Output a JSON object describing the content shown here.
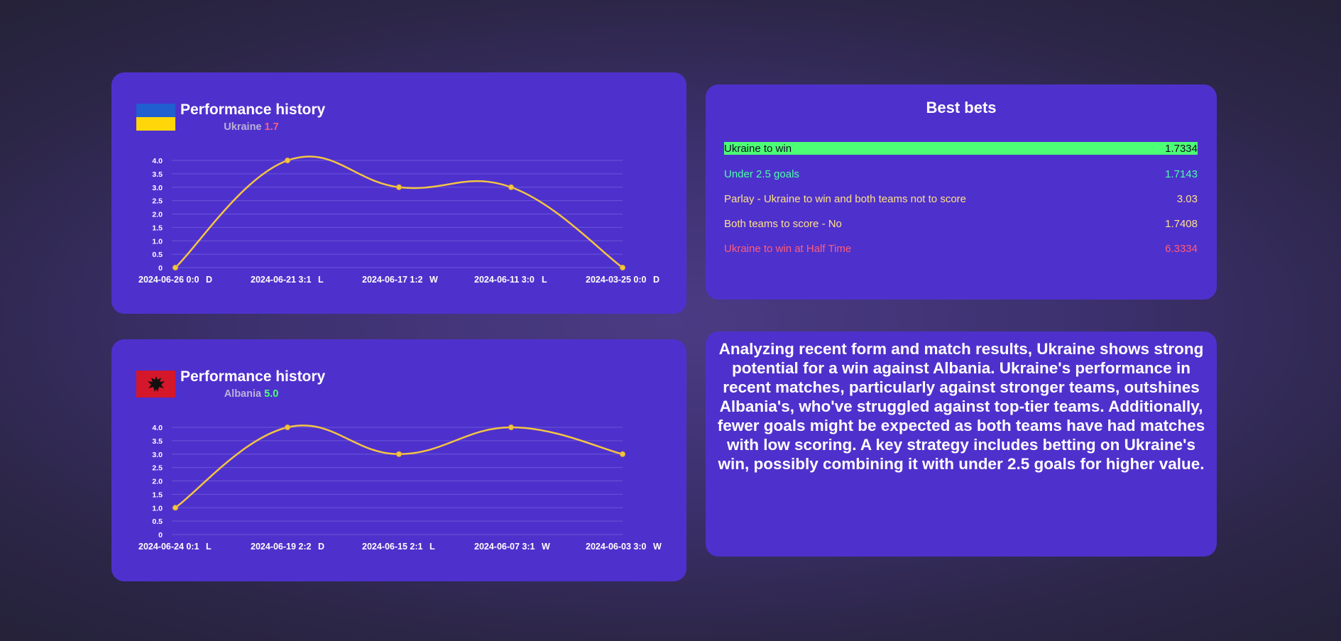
{
  "ukraine_panel": {
    "title": "Performance history",
    "team": "Ukraine",
    "odds": "1.7",
    "flag_icon": "ukraine-flag-icon"
  },
  "albania_panel": {
    "title": "Performance history",
    "team": "Albania",
    "odds": "5.0",
    "flag_icon": "albania-flag-icon"
  },
  "chart_data": [
    {
      "type": "line",
      "x": [
        "2024-06-26 0:0",
        "2024-06-21 3:1",
        "2024-06-17 1:2",
        "2024-06-11 3:0",
        "2024-03-25 0:0"
      ],
      "results": [
        "D",
        "L",
        "W",
        "L",
        "D"
      ],
      "values": [
        0,
        4,
        3,
        3,
        0
      ],
      "yticks": [
        "0",
        "0.5",
        "1.0",
        "1.5",
        "2.0",
        "2.5",
        "3.0",
        "3.5",
        "4.0"
      ],
      "ylim": [
        0,
        4
      ],
      "grid": true,
      "line_color": "#f4c542"
    },
    {
      "type": "line",
      "x": [
        "2024-06-24 0:1",
        "2024-06-19 2:2",
        "2024-06-15 2:1",
        "2024-06-07 3:1",
        "2024-06-03 3:0"
      ],
      "results": [
        "L",
        "D",
        "L",
        "W",
        "W"
      ],
      "values": [
        1,
        4,
        3,
        4,
        3
      ],
      "yticks": [
        "0",
        "0.5",
        "1.0",
        "1.5",
        "2.0",
        "2.5",
        "3.0",
        "3.5",
        "4.0"
      ],
      "ylim": [
        0,
        4
      ],
      "grid": true,
      "line_color": "#f4c542"
    }
  ],
  "best_bets": {
    "title": "Best bets",
    "items": [
      {
        "label": "Ukraine to win",
        "odds": "1.7334",
        "color": "#0c0c20",
        "highlight": true
      },
      {
        "label": "Under 2.5 goals",
        "odds": "1.7143",
        "color": "#4cffa8",
        "highlight": false
      },
      {
        "label": "Parlay - Ukraine to win and both teams not to score",
        "odds": "3.03",
        "color": "#ffe08a",
        "highlight": false
      },
      {
        "label": "Both teams to score - No",
        "odds": "1.7408",
        "color": "#ffe08a",
        "highlight": false
      },
      {
        "label": "Ukraine to win at Half Time",
        "odds": "6.3334",
        "color": "#ff5c7a",
        "highlight": false
      }
    ]
  },
  "analysis": {
    "text": "Analyzing recent form and match results, Ukraine shows strong potential for a win against Albania. Ukraine's performance in recent matches, particularly against stronger teams, outshines Albania's, who've struggled against top-tier teams. Additionally, fewer goals might be expected as both teams have had matches with low scoring. A key strategy includes betting on Ukraine's win, possibly combining it with under 2.5 goals for higher value."
  },
  "colors": {
    "card_background": "#4e31cc",
    "gridline": "#6a55d8",
    "highlight_bet": "#4cff75"
  }
}
